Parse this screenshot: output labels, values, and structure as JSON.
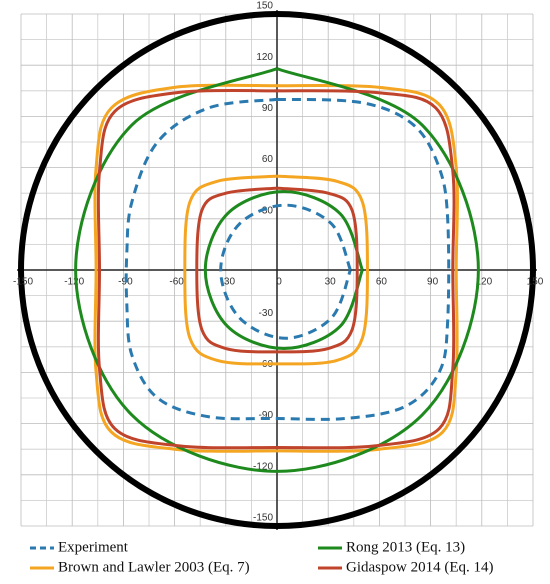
{
  "chart_data": {
    "type": "line",
    "xlim": [
      -150,
      150
    ],
    "ylim": [
      -150,
      150
    ],
    "xticks": [
      -150,
      -120,
      -90,
      -60,
      -30,
      0,
      30,
      60,
      90,
      120,
      150
    ],
    "yticks": [
      -150,
      -120,
      -90,
      -60,
      -30,
      30,
      60,
      90,
      120,
      150
    ],
    "minor_grid": [
      -135,
      -105,
      -75,
      -45,
      -15,
      15,
      45,
      75,
      105,
      135
    ],
    "grid": true,
    "series": [
      {
        "name": "Experiment",
        "color": "#2a7ab0",
        "dashed": true,
        "x": [
          0,
          50,
          80,
          95,
          100,
          100,
          95,
          75,
          40,
          0,
          -40,
          -70,
          -85,
          -88,
          -88,
          -85,
          -70,
          -40,
          0,
          null,
          43,
          32,
          5,
          -22,
          -33,
          -22,
          5,
          32,
          43
        ],
        "y": [
          100,
          98,
          85,
          60,
          30,
          -30,
          -60,
          -80,
          -87,
          -87,
          -86,
          -75,
          -50,
          -20,
          10,
          40,
          75,
          95,
          100,
          null,
          0,
          27,
          38,
          27,
          0,
          -28,
          -40,
          -28,
          0
        ]
      },
      {
        "name": "Brown and Lawler 2003 (Eq. 7)",
        "color": "#f4a521",
        "dashed": false,
        "x": [
          0,
          60,
          95,
          105,
          105,
          105,
          97,
          60,
          0,
          -60,
          -97,
          -106,
          -106,
          -106,
          -97,
          -60,
          0,
          null,
          0,
          35,
          50,
          53,
          50,
          35,
          0,
          -35,
          -51,
          -54,
          -51,
          -35,
          0
        ],
        "y": [
          108,
          107,
          97,
          60,
          0,
          -60,
          -95,
          -105,
          -106,
          -105,
          -95,
          -60,
          0,
          60,
          95,
          107,
          108,
          null,
          55,
          52,
          40,
          0,
          -40,
          -53,
          -55,
          -53,
          -40,
          0,
          40,
          52,
          55
        ]
      },
      {
        "name": "Rong 2013 (Eq. 13)",
        "color": "#1e8a1e",
        "dashed": false,
        "x": [
          0,
          85,
          118,
          85,
          0,
          -85,
          -118,
          -85,
          0,
          null,
          50,
          37,
          4,
          -29,
          -42,
          -29,
          4,
          37,
          50
        ],
        "y": [
          118,
          85,
          0,
          -85,
          -118,
          -85,
          0,
          85,
          118,
          null,
          0,
          33,
          46,
          33,
          0,
          -33,
          -46,
          -33,
          0
        ]
      },
      {
        "name": "Gidaspow 2014 (Eq. 14)",
        "color": "#c0442b",
        "dashed": false,
        "x": [
          0,
          58,
          93,
          103,
          103,
          103,
          95,
          58,
          0,
          -58,
          -95,
          -104,
          -104,
          -104,
          -95,
          -58,
          0,
          null,
          0,
          30,
          44,
          47,
          44,
          30,
          0,
          -30,
          -44,
          -47,
          -44,
          -30,
          0
        ],
        "y": [
          105,
          104,
          95,
          58,
          0,
          -58,
          -93,
          -103,
          -104,
          -103,
          -93,
          -58,
          0,
          58,
          93,
          104,
          105,
          null,
          48,
          45,
          35,
          0,
          -35,
          -46,
          -48,
          -46,
          -35,
          0,
          35,
          45,
          48
        ]
      }
    ]
  }
}
